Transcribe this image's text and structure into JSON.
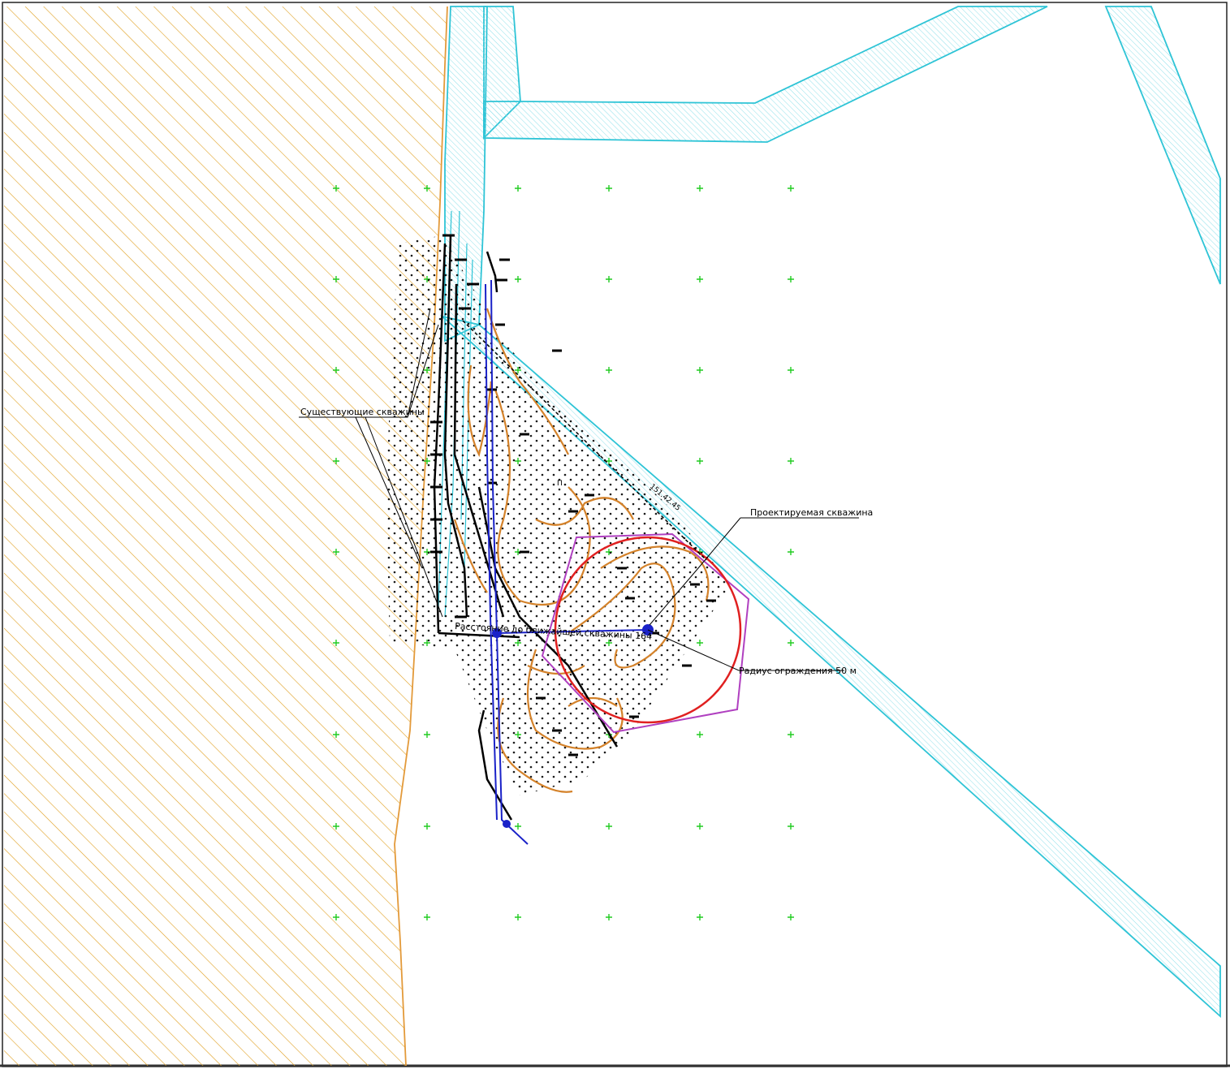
{
  "map": {
    "colors": {
      "hatch_zone": "#e0a020",
      "hatch_zone_border": "#e39a3a",
      "road": "#2ec4d6",
      "road_hatch": "#8fe0ea",
      "grid_cross": "#22cc22",
      "contour": "#d4822a",
      "pipeline": "#1a22c8",
      "circle": "#e02020",
      "boundary": "#b040c0",
      "wells": "#000000"
    },
    "labels": {
      "existing_wells": "Существующие скважины",
      "projected_well": "Проектируемая скважина",
      "distance": "Расстояние до ближайшей скважины 164",
      "fence_radius": "Радиус ограждения 50 м",
      "small_elev_1": "151.42.45",
      "small_elev_2": "П"
    }
  }
}
